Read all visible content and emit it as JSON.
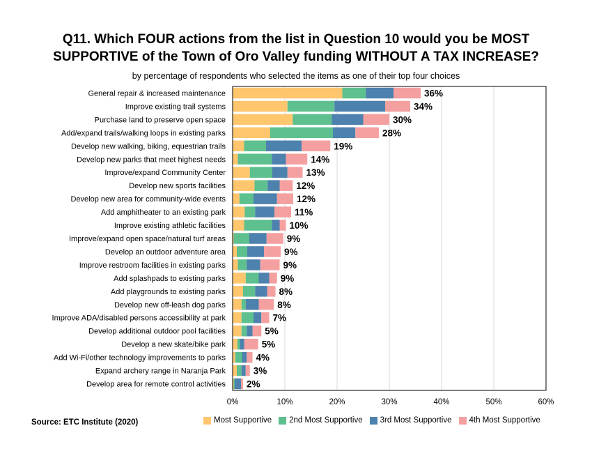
{
  "chart_data": {
    "type": "bar",
    "orientation": "horizontal",
    "stacked": true,
    "title_line1": "Q11. Which FOUR actions from the list in Question 10 would you be MOST",
    "title_line2": "SUPPORTIVE of the Town of Oro Valley funding WITHOUT A TAX INCREASE?",
    "subtitle": "by percentage of respondents who selected the items as one of their top four choices",
    "source": "Source:  ETC Institute (2020)",
    "xlim": [
      0,
      60
    ],
    "xticks": [
      "0%",
      "10%",
      "20%",
      "30%",
      "40%",
      "50%",
      "60%"
    ],
    "grid": true,
    "legend_position": "bottom",
    "categories": [
      "General repair & increased maintenance",
      "Improve existing trail systems",
      "Purchase land to preserve open space",
      "Add/expand trails/walking loops in existing parks",
      "Develop new walking, biking, equestrian trails",
      "Develop new parks that meet highest needs",
      "Improve/expand Community Center",
      "Develop new sports facilities",
      "Develop new area for community-wide events",
      "Add amphitheater to an existing park",
      "Improve existing athletic facilities",
      "Improve/expand open space/natural turf areas",
      "Develop an outdoor adventure area",
      "Improve restroom facilities in existing parks",
      "Add splashpads to existing parks",
      "Add playgrounds to existing parks",
      "Develop new off-leash dog parks",
      "Improve ADA/disabled persons accessibility at park",
      "Develop additional outdoor pool facilities",
      "Develop a new skate/bike park",
      "Add Wi-Fi/other technology improvements to parks",
      "Expand archery range in Naranja Park",
      "Develop area for remote control activities"
    ],
    "series": [
      {
        "name": "Most Supportive",
        "color": "#FFC66E",
        "values": [
          21,
          10.5,
          11.5,
          7.2,
          2.2,
          1,
          3.3,
          4.2,
          1.3,
          2.3,
          2.2,
          0.2,
          0.8,
          1,
          2.5,
          2,
          1.7,
          1.7,
          1.7,
          0.9,
          0.5,
          0.8,
          0.2
        ]
      },
      {
        "name": "2nd Most Supportive",
        "color": "#5DC08E",
        "values": [
          4.5,
          9,
          7.5,
          12,
          4.2,
          6.5,
          4.3,
          2.5,
          2.7,
          2,
          5.3,
          3,
          2,
          1.7,
          2.5,
          2.3,
          0.8,
          2.3,
          1,
          0.5,
          1.3,
          0.9,
          0.2
        ]
      },
      {
        "name": "3rd Most Supportive",
        "color": "#4D81AE",
        "values": [
          5.3,
          9.7,
          6,
          4.3,
          6.8,
          2.7,
          2.9,
          2.3,
          4.5,
          3.7,
          1.5,
          3.3,
          3.2,
          2.6,
          2,
          2.3,
          2.5,
          1.5,
          1.1,
          0.8,
          0.9,
          0.8,
          1.2
        ]
      },
      {
        "name": "4th Most Supportive",
        "color": "#F5A0A0",
        "values": [
          5.2,
          4.8,
          5,
          4.5,
          5.5,
          4.1,
          2.9,
          2.5,
          3.1,
          3.2,
          1.2,
          3.2,
          3.2,
          3.7,
          1.5,
          1.6,
          2.9,
          1.5,
          1.7,
          2.7,
          1.1,
          0.8,
          0.4
        ]
      }
    ],
    "totals": [
      "36%",
      "34%",
      "30%",
      "28%",
      "19%",
      "14%",
      "13%",
      "12%",
      "12%",
      "11%",
      "10%",
      "9%",
      "9%",
      "9%",
      "9%",
      "8%",
      "8%",
      "7%",
      "5%",
      "5%",
      "4%",
      "3%",
      "2%"
    ]
  }
}
